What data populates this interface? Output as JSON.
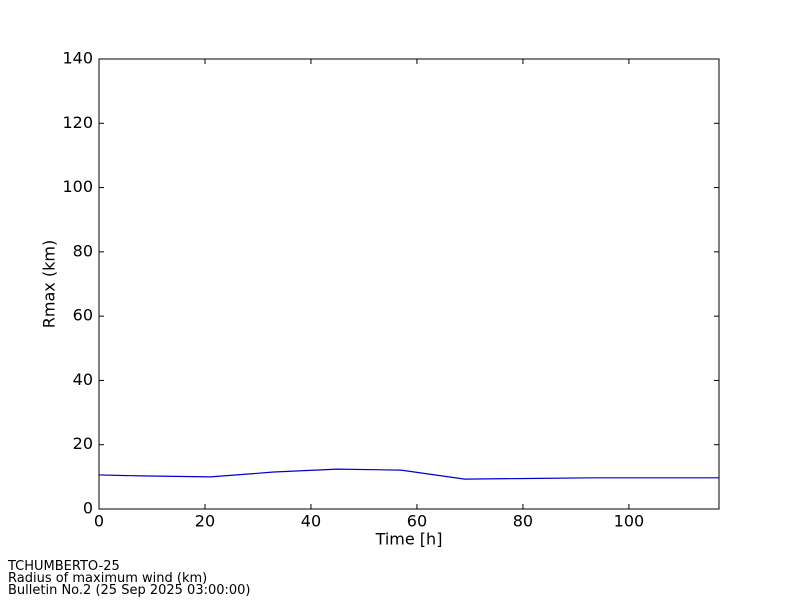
{
  "chart_data": {
    "type": "line",
    "x_label": "Time [h]",
    "y_label": "Rmax (km)",
    "series": [
      {
        "color": "#0000cc",
        "x": [
          0,
          8,
          21,
          33,
          45,
          57,
          69,
          81,
          93,
          105,
          117
        ],
        "values": [
          10.6,
          10.3,
          10.0,
          11.5,
          12.4,
          12.1,
          9.3,
          9.5,
          9.7,
          9.7,
          9.7
        ]
      }
    ],
    "xlim": [
      0,
      117
    ],
    "xticks": [
      0,
      20,
      40,
      60,
      80,
      100
    ],
    "ylim": [
      0,
      140
    ],
    "yticks": [
      0,
      20,
      40,
      60,
      80,
      100,
      120,
      140
    ],
    "grid": false
  },
  "footer": {
    "lines": [
      "TCHUMBERTO-25",
      "Radius of maximum wind (km)",
      "Bulletin No.2 (25 Sep 2025  03:00:00)"
    ]
  }
}
